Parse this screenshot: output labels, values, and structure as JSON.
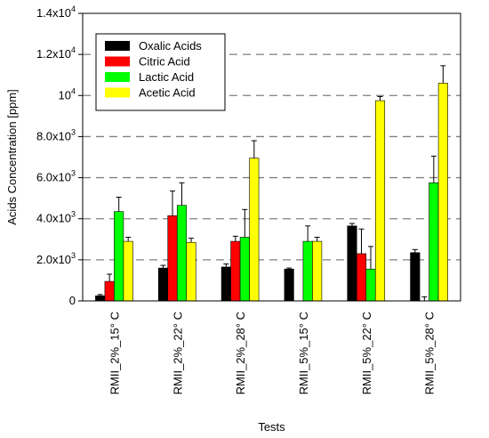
{
  "chart_data": {
    "type": "bar",
    "xlabel": "Tests",
    "ylabel": "Acids Concentration [ppm]",
    "ylim": [
      0,
      14000
    ],
    "grid": "horizontal dashed at major ticks",
    "legend_position": "top-left",
    "y_ticks": [
      {
        "value": 0,
        "mantissa": "0",
        "exponent": ""
      },
      {
        "value": 2000,
        "mantissa": "2.0x10",
        "exponent": "3"
      },
      {
        "value": 4000,
        "mantissa": "4.0x10",
        "exponent": "3"
      },
      {
        "value": 6000,
        "mantissa": "6.0x10",
        "exponent": "3"
      },
      {
        "value": 8000,
        "mantissa": "8.0x10",
        "exponent": "3"
      },
      {
        "value": 10000,
        "mantissa": "10",
        "exponent": "4"
      },
      {
        "value": 12000,
        "mantissa": "1.2x10",
        "exponent": "4"
      },
      {
        "value": 14000,
        "mantissa": "1.4x10",
        "exponent": "4"
      }
    ],
    "categories": [
      "RMII_2%_15° C",
      "RMII_2%_22° C",
      "RMII_2%_28° C",
      "RMII_5%_15° C",
      "RMII_5%_22° C",
      "RMII_5%_28° C"
    ],
    "series": [
      {
        "name": "Oxalic Acids",
        "color": "#000000",
        "values": [
          250,
          1600,
          1650,
          1550,
          3650,
          2350
        ],
        "errors": [
          60,
          130,
          150,
          50,
          120,
          150
        ]
      },
      {
        "name": "Citric Acid",
        "color": "#ff0000",
        "values": [
          950,
          4150,
          2900,
          0,
          2300,
          0
        ],
        "errors": [
          350,
          1200,
          250,
          0,
          1200,
          200
        ]
      },
      {
        "name": "Lactic Acid",
        "color": "#00ff00",
        "values": [
          4350,
          4650,
          3100,
          2900,
          1550,
          5750
        ],
        "errors": [
          700,
          1100,
          1350,
          750,
          1100,
          1300
        ]
      },
      {
        "name": "Acetic Acid",
        "color": "#ffff00",
        "values": [
          2900,
          2850,
          6950,
          2900,
          9750,
          10600
        ],
        "errors": [
          200,
          200,
          850,
          200,
          200,
          850
        ]
      }
    ]
  }
}
